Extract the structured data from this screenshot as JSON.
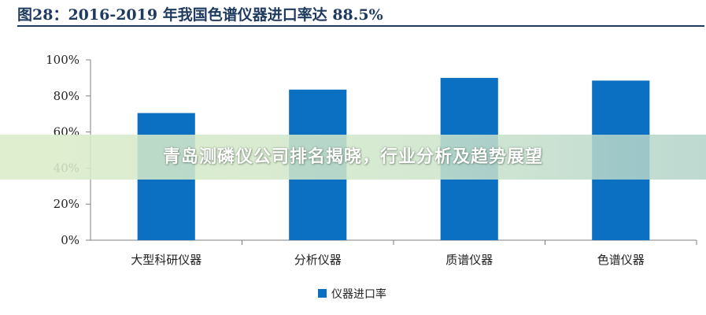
{
  "figure": {
    "title": "图28：2016-2019 年我国色谱仪器进口率达 88.5%"
  },
  "overlay": {
    "text": "青岛测磷仪公司排名揭晓，行业分析及趋势展望"
  },
  "colors": {
    "bar": "#0B70C1",
    "axis": "#7f7f7f",
    "title": "#1f3a5f"
  },
  "chart_data": {
    "type": "bar",
    "categories": [
      "大型科研仪器",
      "分析仪器",
      "质谱仪器",
      "色谱仪器"
    ],
    "series": [
      {
        "name": "仪器进口率",
        "values": [
          70.5,
          83.5,
          90.0,
          88.5
        ]
      }
    ],
    "title": "",
    "xlabel": "",
    "ylabel": "",
    "ylim": [
      0,
      100
    ],
    "yticks": [
      "0%",
      "20%",
      "40%",
      "60%",
      "80%",
      "100%"
    ],
    "grid": false,
    "legend": "bottom"
  }
}
